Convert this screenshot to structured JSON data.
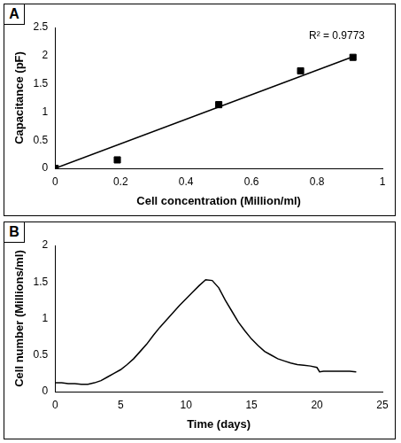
{
  "chart_data": [
    {
      "type": "scatter",
      "title": "A",
      "x_label": "Cell concentration (Million/ml)",
      "y_label": "Capacitance (pF)",
      "annotation": "R² = 0.9773",
      "series": [
        {
          "x": [
            0,
            0.19,
            0.5,
            0.75,
            0.91
          ],
          "values": [
            0,
            0.15,
            1.13,
            1.73,
            1.97
          ],
          "color": "#000000",
          "marker": "square"
        },
        {
          "type": "line",
          "x": [
            0,
            0.91
          ],
          "values": [
            0,
            1.98
          ],
          "color": "#000000",
          "line_style": "solid"
        }
      ],
      "xlim": [
        0,
        1
      ],
      "xticks": [
        0,
        0.2,
        0.4,
        0.6,
        0.8,
        1
      ],
      "ylim": [
        0,
        2.5
      ],
      "yticks": [
        0,
        0.5,
        1,
        1.5,
        2,
        2.5
      ],
      "grid": false
    },
    {
      "type": "line",
      "title": "B",
      "x_label": "Time (days)",
      "y_label": "Cell number (Millions/ml)",
      "x": [
        0,
        0.5,
        1,
        1.5,
        2,
        2.5,
        3,
        3.5,
        4,
        4.5,
        5,
        5.5,
        6,
        6.5,
        7,
        7.5,
        8,
        8.5,
        9,
        9.5,
        10,
        10.5,
        11,
        11.5,
        12,
        12.5,
        13,
        13.5,
        14,
        14.5,
        15,
        15.5,
        16,
        16.5,
        17,
        17.5,
        18,
        18.5,
        19,
        19.5,
        20,
        20.2,
        20.5,
        21,
        21.5,
        22,
        22.5,
        23
      ],
      "values": [
        0.12,
        0.12,
        0.11,
        0.11,
        0.1,
        0.1,
        0.12,
        0.15,
        0.2,
        0.25,
        0.3,
        0.37,
        0.45,
        0.55,
        0.65,
        0.77,
        0.88,
        0.98,
        1.08,
        1.18,
        1.27,
        1.36,
        1.45,
        1.53,
        1.52,
        1.42,
        1.25,
        1.1,
        0.95,
        0.83,
        0.72,
        0.63,
        0.55,
        0.5,
        0.45,
        0.42,
        0.39,
        0.37,
        0.36,
        0.35,
        0.33,
        0.27,
        0.28,
        0.28,
        0.28,
        0.28,
        0.28,
        0.27
      ],
      "color": "#000000",
      "line_style": "solid",
      "xlim": [
        0,
        25
      ],
      "xticks": [
        0,
        5,
        10,
        15,
        20,
        25
      ],
      "ylim": [
        0,
        2
      ],
      "yticks": [
        0,
        0.5,
        1,
        1.5,
        2
      ],
      "grid": false
    }
  ]
}
